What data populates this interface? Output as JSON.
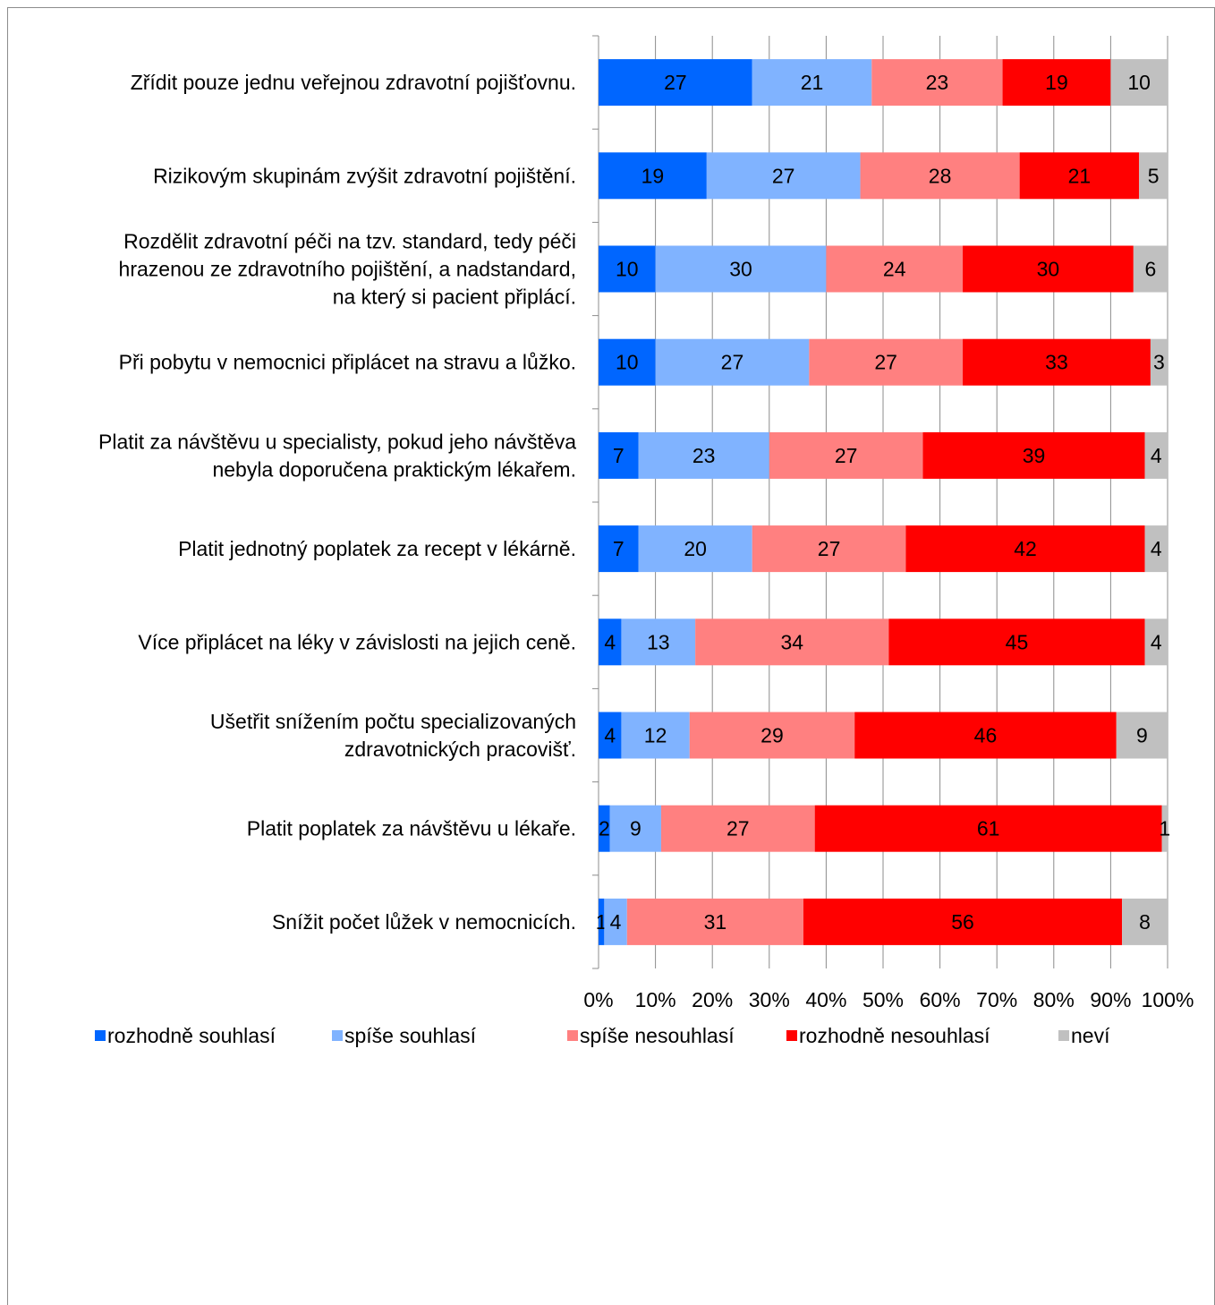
{
  "chart_data": {
    "type": "bar",
    "orientation": "horizontal",
    "stacked": "percent",
    "categories": [
      [
        "Zřídit pouze jednu veřejnou zdravotní pojišťovnu."
      ],
      [
        "Rizikovým skupinám zvýšit zdravotní pojištění."
      ],
      [
        "Rozdělit zdravotní péči na tzv. standard, tedy péči",
        "hrazenou ze zdravotního pojištění, a nadstandard,",
        "na který si pacient připlácí."
      ],
      [
        "Při pobytu v nemocnici připlácet na stravu a lůžko."
      ],
      [
        "Platit za návštěvu u specialisty, pokud jeho návštěva",
        "nebyla doporučena praktickým lékařem."
      ],
      [
        "Platit jednotný poplatek za recept v lékárně."
      ],
      [
        "Více připlácet na léky v závislosti na jejich ceně."
      ],
      [
        "Ušetřit snížením počtu specializovaných",
        "zdravotnických pracovišť."
      ],
      [
        "Platit poplatek za návštěvu u lékaře."
      ],
      [
        "Snížit počet lůžek v nemocnicích."
      ]
    ],
    "series": [
      {
        "name": "rozhodně souhlasí",
        "color": "#0066ff",
        "values": [
          27,
          19,
          10,
          10,
          7,
          7,
          4,
          4,
          2,
          1
        ]
      },
      {
        "name": "spíše souhlasí",
        "color": "#80b3ff",
        "values": [
          21,
          27,
          30,
          27,
          23,
          20,
          13,
          12,
          9,
          4
        ]
      },
      {
        "name": "spíše nesouhlasí",
        "color": "#ff8080",
        "values": [
          23,
          28,
          24,
          27,
          27,
          27,
          34,
          29,
          27,
          31
        ]
      },
      {
        "name": "rozhodně nesouhlasí",
        "color": "#ff0000",
        "values": [
          19,
          21,
          30,
          33,
          39,
          42,
          45,
          46,
          61,
          56
        ]
      },
      {
        "name": "neví",
        "color": "#c0c0c0",
        "values": [
          10,
          5,
          6,
          3,
          4,
          4,
          4,
          9,
          1,
          8
        ]
      }
    ],
    "xticks": [
      "0%",
      "10%",
      "20%",
      "30%",
      "40%",
      "50%",
      "60%",
      "70%",
      "80%",
      "90%",
      "100%"
    ],
    "xlim": [
      0,
      100
    ],
    "grid": true,
    "legend": "bottom",
    "title": "",
    "xlabel": "",
    "ylabel": ""
  }
}
